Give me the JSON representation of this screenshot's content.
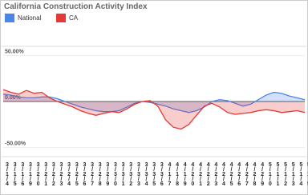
{
  "chart_data": {
    "type": "line",
    "title": "California Construction Activity Index",
    "categories": [
      "3/1/4",
      "3/1/5",
      "3/1/6",
      "3/1/9",
      "3/2/0",
      "3/2/1",
      "3/2/2",
      "3/2/3",
      "3/2/4",
      "3/2/5",
      "3/2/6",
      "3/2/7",
      "3/2/8",
      "3/2/9",
      "3/3/0",
      "3/3/1",
      "3/3/2",
      "3/3/3",
      "3/3/4",
      "3/3/5",
      "3/3/6",
      "4/1/7",
      "4/1/8",
      "4/1/9",
      "4/2/0",
      "4/2/1",
      "4/2/2",
      "4/2/3",
      "4/2/4",
      "4/2/5",
      "4/2/6",
      "4/2/7",
      "4/2/8",
      "4/2/9",
      "5/1/0",
      "5/1/1",
      "5/1/2",
      "5/1/3",
      "5/1/4",
      "5/1/5"
    ],
    "series": [
      {
        "name": "National",
        "color": "#4a86e8",
        "values": [
          8,
          7,
          5,
          4,
          4,
          5,
          5,
          3,
          0,
          -3,
          -6,
          -8,
          -10,
          -11,
          -11,
          -10,
          -6,
          -2,
          0,
          -1,
          -3,
          -5,
          -8,
          -10,
          -12,
          -10,
          -6,
          0,
          2,
          1,
          -2,
          -5,
          -3,
          2,
          7,
          10,
          9,
          6,
          4,
          2
        ]
      },
      {
        "name": "CA",
        "color": "#e53935",
        "values": [
          13,
          10,
          8,
          12,
          9,
          10,
          4,
          0,
          -3,
          -6,
          -10,
          -13,
          -15,
          -13,
          -11,
          -12,
          -8,
          -3,
          0,
          1,
          -5,
          -20,
          -28,
          -30,
          -25,
          -15,
          -5,
          -2,
          -6,
          -12,
          -14,
          -13,
          -12,
          -10,
          -9,
          -10,
          -12,
          -11,
          -10,
          -12
        ]
      }
    ],
    "ylim": [
      -60,
      60
    ],
    "yticks": [
      {
        "value": -50,
        "label": "-50.00%"
      },
      {
        "value": 0,
        "label": "0.00%"
      },
      {
        "value": 50,
        "label": "50.00%"
      }
    ],
    "grid": true
  }
}
